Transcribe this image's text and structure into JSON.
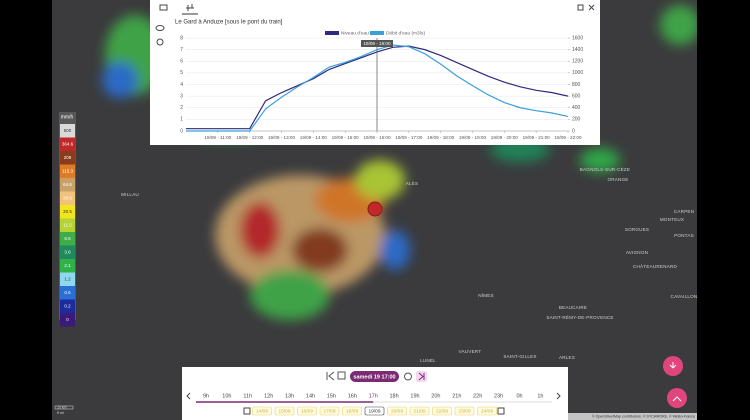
{
  "chart_data": {
    "type": "line",
    "title": "Le Gard à Anduze [sous le pont du train]",
    "x": [
      10,
      10.5,
      11,
      11.5,
      12,
      12.5,
      13,
      13.5,
      14,
      14.5,
      15,
      15.5,
      16,
      16.5,
      17,
      17.5,
      18,
      18.5,
      19,
      19.5,
      20,
      20.5,
      21,
      21.5,
      22
    ],
    "xlim": [
      10,
      22
    ],
    "xticks": [
      {
        "value": 11,
        "label": "19/09 - 11:00"
      },
      {
        "value": 12,
        "label": "19/09 - 12:00"
      },
      {
        "value": 13,
        "label": "19/09 - 13:00"
      },
      {
        "value": 14,
        "label": "19/09 - 14:00"
      },
      {
        "value": 15,
        "label": "19/09 - 15:00"
      },
      {
        "value": 16,
        "label": "19/09 - 16:00"
      },
      {
        "value": 17,
        "label": "19/09 - 17:00"
      },
      {
        "value": 18,
        "label": "19/09 - 18:00"
      },
      {
        "value": 19,
        "label": "19/09 - 19:00"
      },
      {
        "value": 20,
        "label": "19/09 - 20:00"
      },
      {
        "value": 21,
        "label": "19/09 - 21:00"
      },
      {
        "value": 22,
        "label": "19/09 - 22:00"
      }
    ],
    "ylim": [
      0,
      8
    ],
    "yticks": [
      0,
      1,
      2,
      3,
      4,
      5,
      6,
      7,
      8
    ],
    "y2lim": [
      0,
      1600
    ],
    "y2ticks": [
      0,
      200,
      400,
      600,
      800,
      1000,
      1200,
      1400,
      1600
    ],
    "grid": true,
    "series": [
      {
        "name": "Niveau d'eau (m)",
        "color": "#2e2a7e",
        "values": [
          0.2,
          0.2,
          0.2,
          0.2,
          0.2,
          2.6,
          3.3,
          3.9,
          4.5,
          5.3,
          5.8,
          6.3,
          6.8,
          7.2,
          7.3,
          7.0,
          6.5,
          5.9,
          5.3,
          4.7,
          4.2,
          3.8,
          3.5,
          3.3,
          3.0
        ]
      },
      {
        "name": "Débit d'eau (m3/s)",
        "color": "#3aa0dc",
        "axis": "y2",
        "values": [
          0,
          0,
          0,
          0,
          0,
          380,
          580,
          760,
          920,
          1100,
          1180,
          1280,
          1400,
          1480,
          1450,
          1330,
          1150,
          950,
          780,
          620,
          490,
          400,
          350,
          310,
          250
        ]
      }
    ],
    "marker": {
      "x": 16,
      "label": "19/09 - 16:00"
    }
  },
  "legend_scale": {
    "unit": "mm/h",
    "items": [
      {
        "label": "500",
        "color": "#d9d9d9"
      },
      {
        "label": "364.6",
        "color": "#c0282a"
      },
      {
        "label": "209",
        "color": "#8a3b1e"
      },
      {
        "label": "115.3",
        "color": "#e07b25"
      },
      {
        "label": "64.8",
        "color": "#c9a26a"
      },
      {
        "label": "36.5",
        "color": "#f0c27b"
      },
      {
        "label": "20.5",
        "color": "#f2e51d"
      },
      {
        "label": "11.5",
        "color": "#b5d334"
      },
      {
        "label": "6.5",
        "color": "#3fae49"
      },
      {
        "label": "3.6",
        "color": "#1f8a5b"
      },
      {
        "label": "2.1",
        "color": "#2fb24a"
      },
      {
        "label": "1.2",
        "color": "#8ed8f0"
      },
      {
        "label": "0.6",
        "color": "#2a6fd6"
      },
      {
        "label": "0.2",
        "color": "#1c2b9e"
      },
      {
        "label": "0",
        "color": "#3a1a7a"
      }
    ]
  },
  "cities": [
    "MILLAU",
    "ALÈS",
    "BAGNOLS-SUR-CÈZE",
    "ORANGE",
    "CARPEN",
    "MONTEUX",
    "SORGUES",
    "PONTAS",
    "AVIGNON",
    "CHÂTEAURENARD",
    "CAVAILLON",
    "NÎMES",
    "BEAUCAIRE",
    "SAINT-RÉMY-DE-PROVENCE",
    "LUNEL",
    "VAUVERT",
    "SAINT-GILLES",
    "ARLES"
  ],
  "timeline": {
    "current": "samedi 19 17:00",
    "hours": [
      "9h",
      "10h",
      "11h",
      "12h",
      "13h",
      "14h",
      "15h",
      "16h",
      "17h",
      "18h",
      "19h",
      "20h",
      "21h",
      "22h",
      "23h",
      "0h",
      "1h"
    ],
    "selected_hour_index": 8,
    "dates": [
      "14/09",
      "15/09",
      "16/09",
      "17/09",
      "18/09",
      "19/09",
      "20/09",
      "21/09",
      "22/09",
      "23/09",
      "24/09"
    ],
    "selected_date_index": 5
  },
  "attribution": "© OpenStreetMap contributors, © SYCAMORE, © Météo-France",
  "scale": [
    "10 km",
    "5 mi"
  ]
}
